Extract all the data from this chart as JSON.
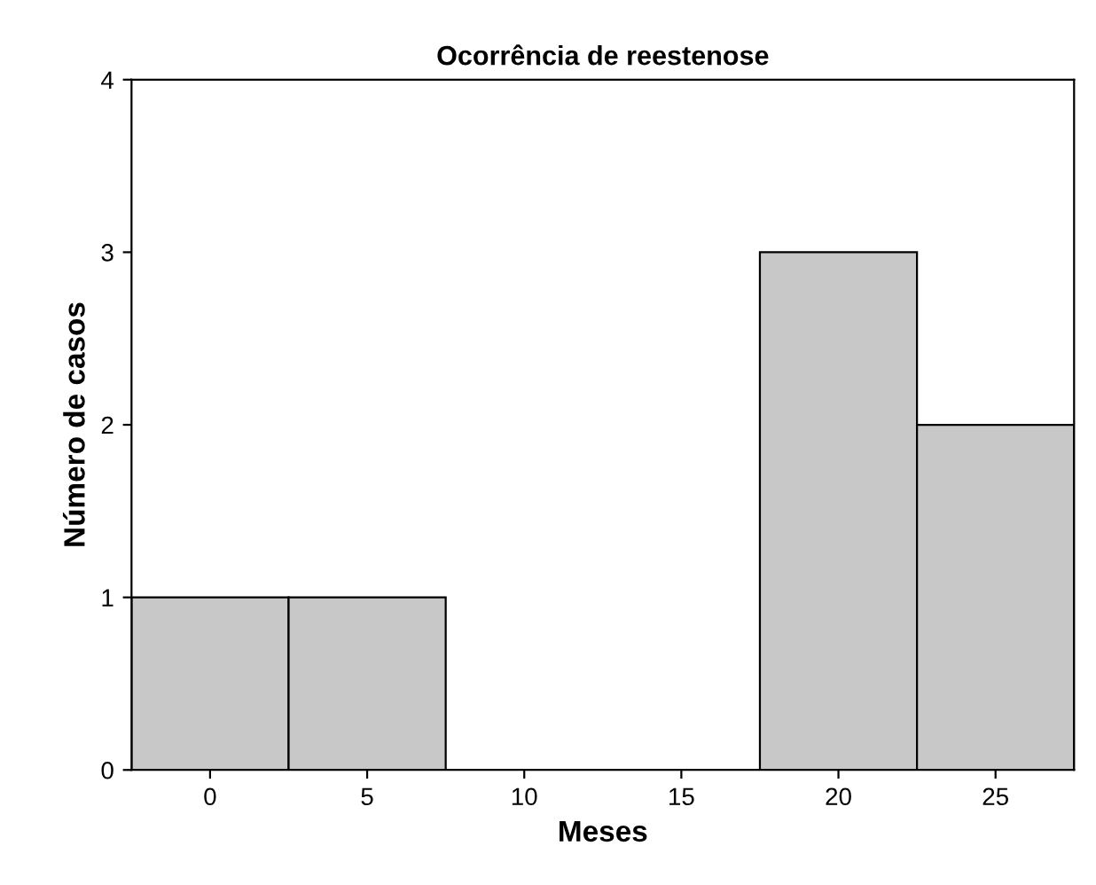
{
  "chart_data": {
    "type": "histogram",
    "title": "Ocorrência de reestenose",
    "xlabel": "Meses",
    "ylabel": "Número de casos",
    "bins": [
      -2.5,
      2.5,
      7.5,
      12.5,
      17.5,
      22.5,
      27.5
    ],
    "values": [
      1,
      1,
      0,
      0,
      3,
      2
    ],
    "color": "#c8c8c8",
    "xlim": [
      -2.5,
      27.5
    ],
    "xticks": [
      0,
      5,
      10,
      15,
      20,
      25
    ],
    "ylim": [
      0,
      4
    ],
    "yticks": [
      0,
      1,
      2,
      3,
      4
    ],
    "grid": false
  }
}
